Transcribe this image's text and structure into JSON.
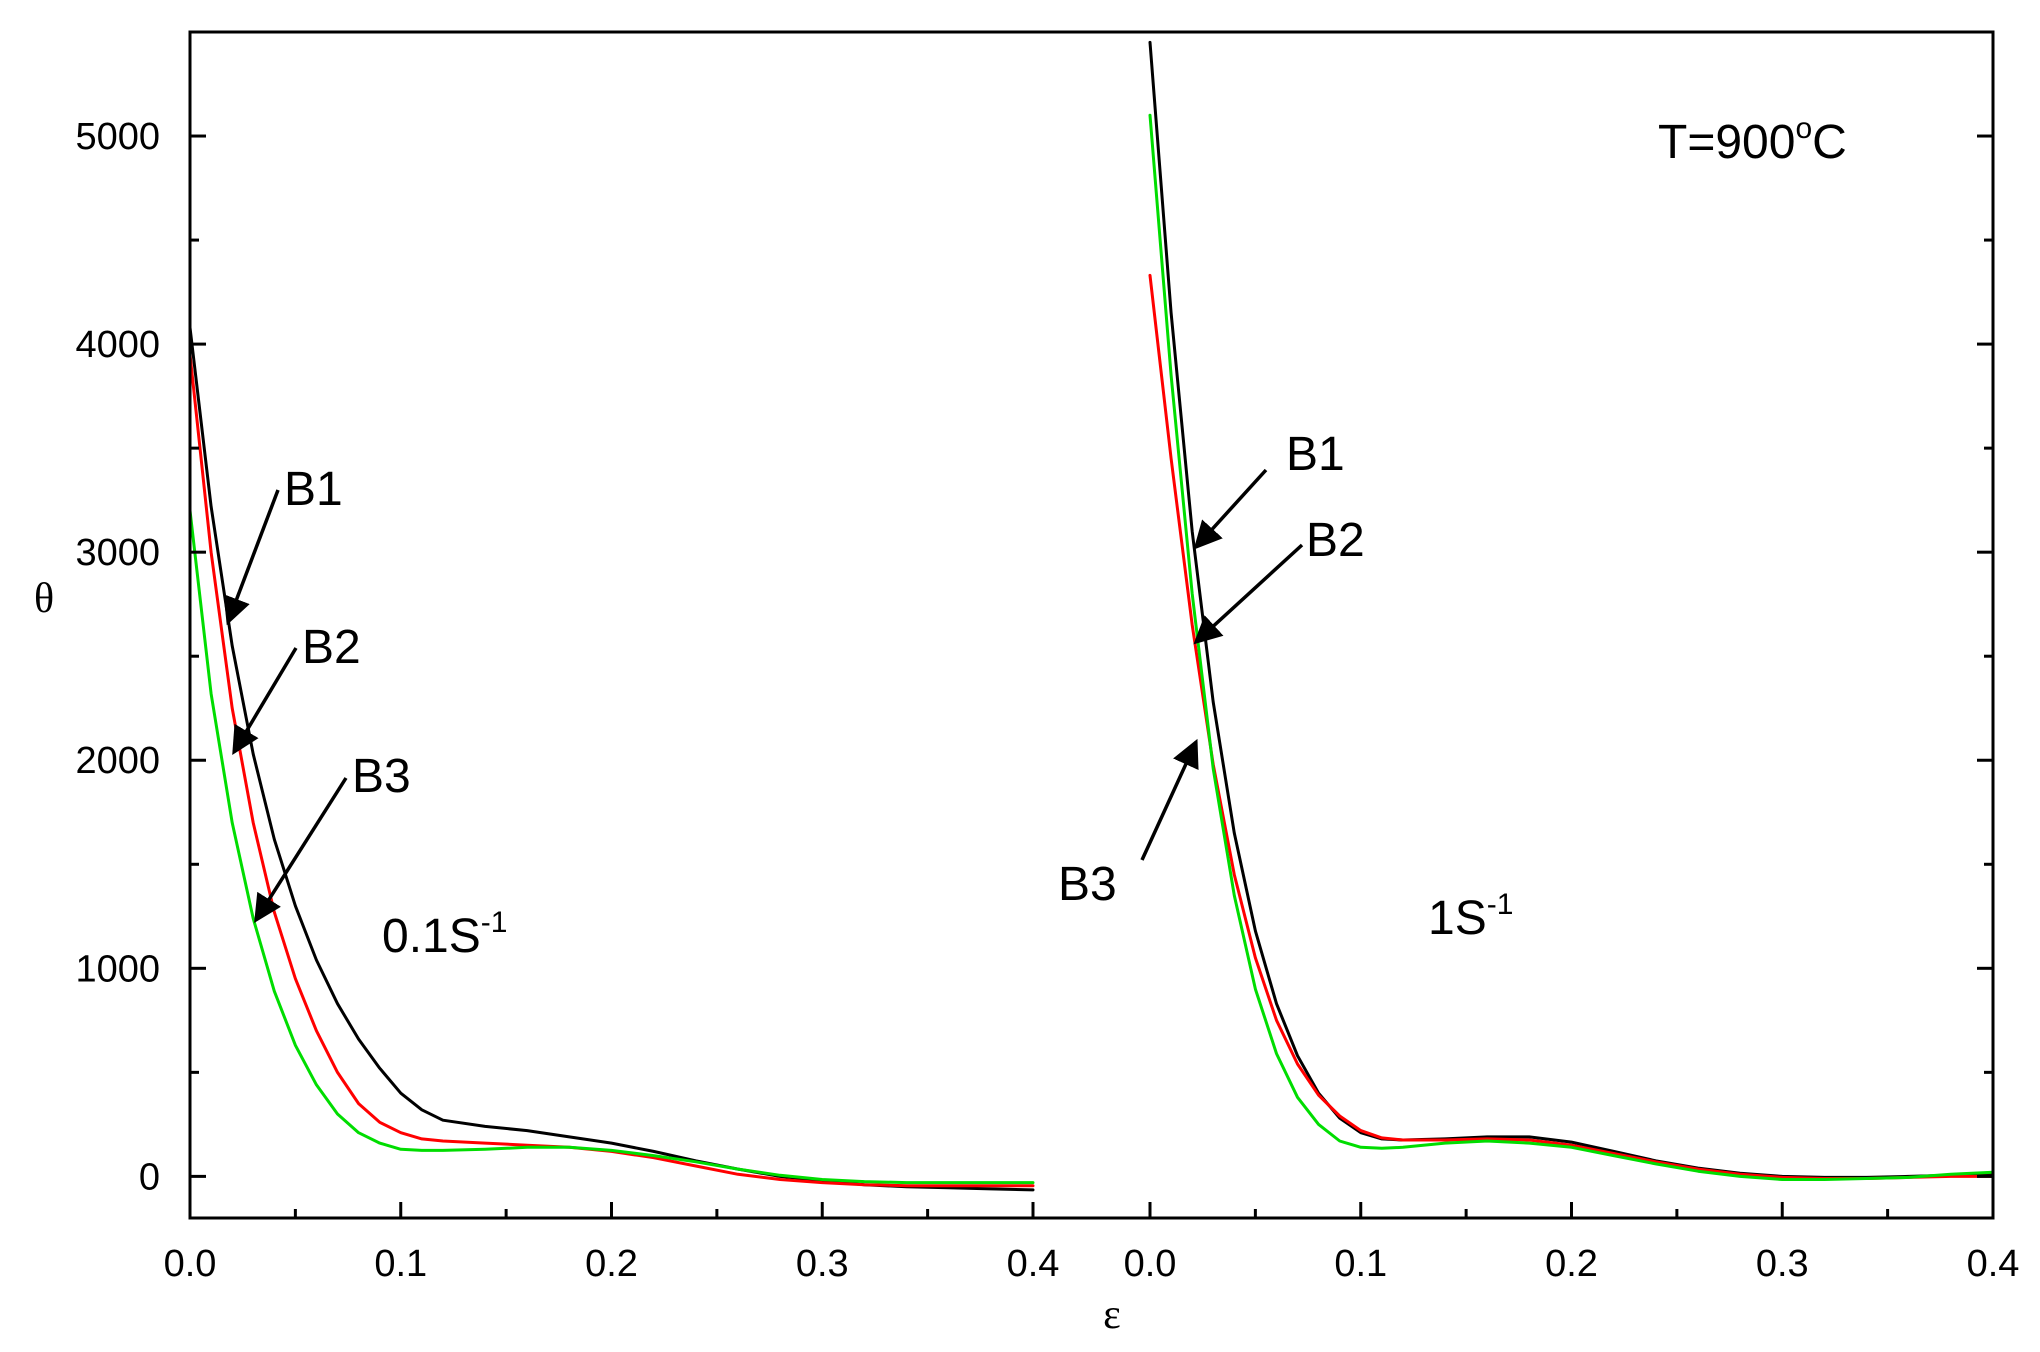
{
  "chart_data": {
    "type": "line",
    "xlabel": "ε",
    "ylabel": "θ",
    "xlim": [
      0,
      0.4
    ],
    "ylim": [
      -200,
      5500
    ],
    "x_ticks": [
      "0.0",
      "0.1",
      "0.2",
      "0.3",
      "0.4"
    ],
    "y_ticks": [
      "0",
      "1000",
      "2000",
      "3000",
      "4000",
      "5000"
    ],
    "series_colors": {
      "B1": "#000000",
      "B2": "#ff0000",
      "B3": "#00dd00"
    },
    "annotations": {
      "temperature": {
        "text": "T=900",
        "sup": "o",
        "after": "C"
      },
      "panel_left_rate": {
        "text": "0.1S",
        "sup": "-1"
      },
      "panel_right_rate": {
        "text": "1S",
        "sup": "-1"
      },
      "labels": [
        "B1",
        "B2",
        "B3"
      ]
    },
    "panels": [
      {
        "rate": "0.1S-1",
        "series": [
          {
            "name": "B1",
            "x": [
              0,
              0.01,
              0.02,
              0.03,
              0.04,
              0.05,
              0.06,
              0.07,
              0.08,
              0.09,
              0.1,
              0.11,
              0.12,
              0.14,
              0.16,
              0.18,
              0.2,
              0.22,
              0.24,
              0.26,
              0.28,
              0.3,
              0.32,
              0.34,
              0.36,
              0.38,
              0.4
            ],
            "y": [
              4080,
              3220,
              2550,
              2030,
              1620,
              1300,
              1040,
              830,
              660,
              520,
              400,
              320,
              270,
              240,
              220,
              190,
              160,
              120,
              75,
              35,
              0,
              -20,
              -40,
              -50,
              -55,
              -60,
              -65
            ]
          },
          {
            "name": "B2",
            "x": [
              0,
              0.01,
              0.02,
              0.03,
              0.04,
              0.05,
              0.06,
              0.07,
              0.08,
              0.09,
              0.1,
              0.11,
              0.12,
              0.14,
              0.16,
              0.18,
              0.2,
              0.22,
              0.24,
              0.26,
              0.28,
              0.3,
              0.32,
              0.34,
              0.36,
              0.38,
              0.4
            ],
            "y": [
              3950,
              3000,
              2250,
              1700,
              1270,
              950,
              700,
              500,
              350,
              260,
              210,
              180,
              170,
              160,
              150,
              140,
              120,
              90,
              50,
              10,
              -15,
              -30,
              -40,
              -45,
              -45,
              -45,
              -45
            ]
          },
          {
            "name": "B3",
            "x": [
              0,
              0.01,
              0.02,
              0.03,
              0.04,
              0.05,
              0.06,
              0.07,
              0.08,
              0.09,
              0.1,
              0.11,
              0.12,
              0.14,
              0.16,
              0.18,
              0.2,
              0.22,
              0.24,
              0.26,
              0.28,
              0.3,
              0.32,
              0.34,
              0.36,
              0.38,
              0.4
            ],
            "y": [
              3200,
              2320,
              1700,
              1240,
              890,
              630,
              440,
              300,
              210,
              160,
              130,
              125,
              125,
              130,
              140,
              140,
              125,
              100,
              70,
              35,
              5,
              -15,
              -25,
              -30,
              -30,
              -30,
              -30
            ]
          }
        ]
      },
      {
        "rate": "1S-1",
        "series": [
          {
            "name": "B1",
            "x": [
              0,
              0.01,
              0.02,
              0.03,
              0.04,
              0.05,
              0.06,
              0.07,
              0.08,
              0.09,
              0.1,
              0.11,
              0.12,
              0.14,
              0.16,
              0.18,
              0.2,
              0.22,
              0.24,
              0.26,
              0.28,
              0.3,
              0.32,
              0.34,
              0.36,
              0.38,
              0.4
            ],
            "y": [
              5450,
              4150,
              3100,
              2280,
              1650,
              1180,
              830,
              580,
              400,
              280,
              210,
              180,
              175,
              180,
              190,
              190,
              165,
              120,
              75,
              40,
              15,
              0,
              -5,
              -5,
              0,
              5,
              10
            ]
          },
          {
            "name": "B2",
            "x": [
              0,
              0.01,
              0.02,
              0.03,
              0.04,
              0.05,
              0.06,
              0.07,
              0.08,
              0.09,
              0.1,
              0.11,
              0.12,
              0.14,
              0.16,
              0.18,
              0.2,
              0.22,
              0.24,
              0.26,
              0.28,
              0.3,
              0.32,
              0.34,
              0.36,
              0.38,
              0.4
            ],
            "y": [
              4330,
              3450,
              2650,
              1980,
              1450,
              1050,
              750,
              540,
              390,
              290,
              220,
              185,
              175,
              175,
              180,
              175,
              150,
              110,
              70,
              35,
              10,
              -5,
              -10,
              -10,
              -5,
              0,
              0
            ]
          },
          {
            "name": "B3",
            "x": [
              0,
              0.01,
              0.02,
              0.03,
              0.04,
              0.05,
              0.06,
              0.07,
              0.08,
              0.09,
              0.1,
              0.11,
              0.12,
              0.14,
              0.16,
              0.18,
              0.2,
              0.22,
              0.24,
              0.26,
              0.28,
              0.3,
              0.32,
              0.34,
              0.36,
              0.38,
              0.4
            ],
            "y": [
              5100,
              3850,
              2800,
              1960,
              1350,
              900,
              590,
              380,
              250,
              170,
              140,
              135,
              140,
              160,
              170,
              160,
              140,
              100,
              60,
              25,
              0,
              -15,
              -15,
              -10,
              -5,
              10,
              20
            ]
          }
        ]
      }
    ]
  }
}
